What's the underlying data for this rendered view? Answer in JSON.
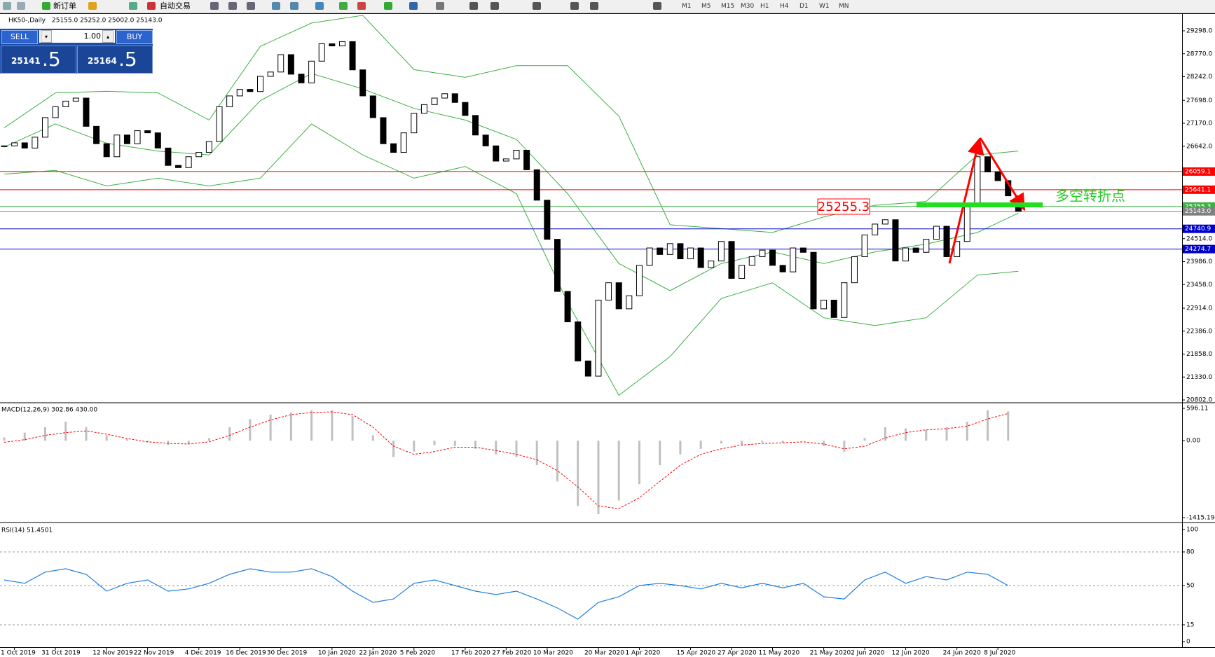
{
  "toolbar": {
    "new_order": "新订单",
    "auto_trading": "自动交易",
    "timeframes": [
      "M1",
      "M5",
      "M15",
      "M30",
      "H1",
      "H4",
      "D1",
      "W1",
      "MN"
    ]
  },
  "chart_header": {
    "symbol": "HK50-,Daily",
    "ohlc": "25155.0 25252.0 25002.0 25143.0"
  },
  "trade_panel": {
    "sell_label": "SELL",
    "buy_label": "BUY",
    "volume": "1.00",
    "sell_price": {
      "main": "25141",
      "fraction": ".5"
    },
    "buy_price": {
      "main": "25164",
      "fraction": ".5"
    }
  },
  "chart_data": [
    {
      "type": "candlestick",
      "categories": [
        null,
        "1 Oct 2019",
        null,
        null,
        null,
        "31 Oct 2019",
        null,
        null,
        null,
        null,
        "12 Nov 2019",
        null,
        null,
        null,
        "22 Nov 2019",
        null,
        null,
        null,
        null,
        "4 Dec 2019",
        null,
        null,
        null,
        "16 Dec 2019",
        null,
        null,
        null,
        "30 Dec 2019",
        null,
        null,
        null,
        null,
        "10 Jan 2020",
        null,
        null,
        null,
        "22 Jan 2020",
        null,
        null,
        null,
        "5 Feb 2020",
        null,
        null,
        null,
        null,
        "17 Feb 2020",
        null,
        null,
        null,
        "27 Feb 2020",
        null,
        null,
        null,
        "10 Mar 2020",
        null,
        null,
        null,
        null,
        "20 Mar 2020",
        null,
        null,
        null,
        "1 Apr 2020",
        null,
        null,
        null,
        null,
        "15 Apr 2020",
        null,
        null,
        null,
        "27 Apr 2020",
        null,
        null,
        null,
        "11 May 2020",
        null,
        null,
        null,
        null,
        "21 May 2020",
        null,
        null,
        null,
        "2 Jun 2020",
        null,
        null,
        null,
        "12 Jun 2020",
        null,
        null,
        null,
        null,
        "24 Jun 2020",
        null,
        null,
        null,
        "8 Jul 2020",
        null,
        null
      ],
      "values": [
        26650,
        26720,
        26600,
        26850,
        27300,
        27550,
        27680,
        27750,
        27100,
        26700,
        26400,
        26900,
        26700,
        27000,
        26950,
        26600,
        26200,
        26150,
        26400,
        26500,
        26750,
        27550,
        27800,
        27950,
        27900,
        28250,
        28350,
        28750,
        28300,
        28100,
        28600,
        29000,
        28950,
        29050,
        28400,
        27800,
        27300,
        26700,
        26500,
        26950,
        27400,
        27600,
        27750,
        27850,
        27650,
        27350,
        26900,
        26650,
        26300,
        26350,
        26550,
        26100,
        25400,
        24500,
        23300,
        22600,
        21700,
        21350,
        23100,
        23500,
        22900,
        23200,
        23900,
        24300,
        24150,
        24400,
        24050,
        24300,
        23850,
        24000,
        24450,
        23600,
        23900,
        24100,
        24250,
        23900,
        23750,
        24300,
        24200,
        22900,
        23100,
        22700,
        23500,
        24100,
        24600,
        24850,
        24950,
        24000,
        24300,
        24200,
        24500,
        24800,
        24100,
        24450,
        25300,
        26400,
        26050,
        25850,
        25500,
        25143
      ],
      "color_up": "#ffffff",
      "color_down": "#000000",
      "bands": {
        "x": [
          0,
          5,
          10,
          15,
          20,
          25,
          30,
          35,
          40,
          45,
          50,
          55,
          60,
          65,
          70,
          75,
          80,
          85,
          90,
          95,
          99
        ],
        "upper": [
          27067,
          27870,
          27906,
          27870,
          27245,
          28941,
          29477,
          29655,
          28405,
          28227,
          28495,
          28495,
          27335,
          24835,
          24746,
          24657,
          25014,
          25282,
          25371,
          26442,
          26531
        ],
        "middle": [
          26620,
          27156,
          26710,
          26530,
          26442,
          27691,
          28316,
          27960,
          27513,
          27245,
          26800,
          25550,
          23943,
          23318,
          23943,
          24211,
          23943,
          24211,
          24390,
          24657,
          25103
        ],
        "lower": [
          26000,
          26085,
          25728,
          25907,
          25728,
          25907,
          27156,
          26442,
          25907,
          26175,
          25550,
          23050,
          20909,
          21801,
          23140,
          23497,
          22693,
          22515,
          22693,
          23675,
          23765
        ],
        "color": "#3cb043"
      },
      "levels": [
        26059.1,
        25641.1,
        25255.3,
        {
          "value": 25143,
          "label": "25143.0"
        },
        24740.9,
        24274.7
      ],
      "level_colors": [
        "#ff0000",
        "#ff0000",
        "#3cb043",
        "#808080",
        "#0000cc",
        "#0000cc"
      ],
      "annotations": [
        "25255.3",
        "多空转折点"
      ],
      "ylim": [
        20754,
        29685
      ],
      "yticks": [
        {
          "value": 29298,
          "label": "29298.0"
        },
        {
          "value": 28770,
          "label": "28770.0"
        },
        {
          "value": 28242,
          "label": "28242.0"
        },
        {
          "value": 27698,
          "label": "27698.0"
        },
        {
          "value": 27170,
          "label": "27170.0"
        },
        {
          "value": 26642,
          "label": "26642.0"
        },
        {
          "value": 24514,
          "label": "24514.0"
        },
        {
          "value": 23986,
          "label": "23986.0"
        },
        {
          "value": 23458,
          "label": "23458.0"
        },
        {
          "value": 22914,
          "label": "22914.0"
        },
        {
          "value": 22386,
          "label": "22386.0"
        },
        {
          "value": 21858,
          "label": "21858.0"
        },
        {
          "value": 21330,
          "label": "21330.0"
        },
        {
          "value": 20802,
          "label": "20802.0"
        }
      ]
    },
    {
      "type": "macd",
      "title": "MACD(12,26,9) 302.86 430.00",
      "x": [
        0,
        2,
        4,
        6,
        8,
        10,
        12,
        14,
        16,
        18,
        20,
        22,
        24,
        26,
        28,
        30,
        32,
        34,
        36,
        38,
        40,
        42,
        44,
        46,
        48,
        50,
        52,
        54,
        56,
        58,
        60,
        62,
        64,
        66,
        68,
        70,
        72,
        74,
        76,
        78,
        80,
        82,
        84,
        86,
        88,
        90,
        92,
        94,
        96,
        98
      ],
      "series": [
        {
          "color": "#c0c0c0",
          "values": [
            60,
            150,
            250,
            350,
            250,
            100,
            30,
            -30,
            -80,
            -60,
            50,
            250,
            400,
            480,
            520,
            560,
            560,
            450,
            100,
            -300,
            -200,
            -80,
            -100,
            -150,
            -250,
            -300,
            -450,
            -750,
            -1200,
            -1350,
            -1100,
            -800,
            -450,
            -250,
            -150,
            -50,
            -80,
            -30,
            -40,
            0,
            -100,
            -200,
            50,
            250,
            230,
            200,
            250,
            350,
            560,
            540
          ]
        },
        {
          "color": "#ff0000",
          "values": [
            -30,
            20,
            100,
            150,
            180,
            120,
            40,
            -20,
            -50,
            -60,
            -20,
            100,
            250,
            380,
            480,
            520,
            530,
            480,
            250,
            -100,
            -250,
            -200,
            -120,
            -120,
            -180,
            -250,
            -350,
            -550,
            -850,
            -1200,
            -1250,
            -1050,
            -750,
            -450,
            -250,
            -150,
            -80,
            -50,
            -40,
            -20,
            -60,
            -150,
            -100,
            50,
            150,
            200,
            220,
            270,
            400,
            500
          ]
        }
      ],
      "ylim": [
        -1480,
        686
      ],
      "yticks": [
        596.11,
        {
          "value": 0,
          "label": "0.00"
        },
        -1415.19
      ]
    },
    {
      "type": "rsi",
      "title": "RSI(14) 51.4501",
      "x": [
        0,
        2,
        4,
        6,
        8,
        10,
        12,
        14,
        16,
        18,
        20,
        22,
        24,
        26,
        28,
        30,
        32,
        34,
        36,
        38,
        40,
        42,
        44,
        46,
        48,
        50,
        52,
        54,
        56,
        58,
        60,
        62,
        64,
        66,
        68,
        70,
        72,
        74,
        76,
        78,
        80,
        82,
        84,
        86,
        88,
        90,
        92,
        94,
        96,
        98
      ],
      "values": [
        55,
        52,
        62,
        65,
        60,
        45,
        52,
        55,
        45,
        47,
        52,
        60,
        65,
        62,
        62,
        65,
        58,
        45,
        35,
        38,
        52,
        55,
        50,
        45,
        42,
        45,
        38,
        30,
        20,
        35,
        40,
        50,
        52,
        50,
        47,
        52,
        48,
        52,
        48,
        52,
        40,
        38,
        55,
        62,
        52,
        58,
        55,
        62,
        60,
        50
      ],
      "color": "#1e7fe0",
      "dashed_levels": [
        80,
        50,
        15
      ],
      "ylim": [
        -5,
        105
      ],
      "yticks": [
        100,
        80,
        50,
        15,
        0
      ]
    }
  ]
}
